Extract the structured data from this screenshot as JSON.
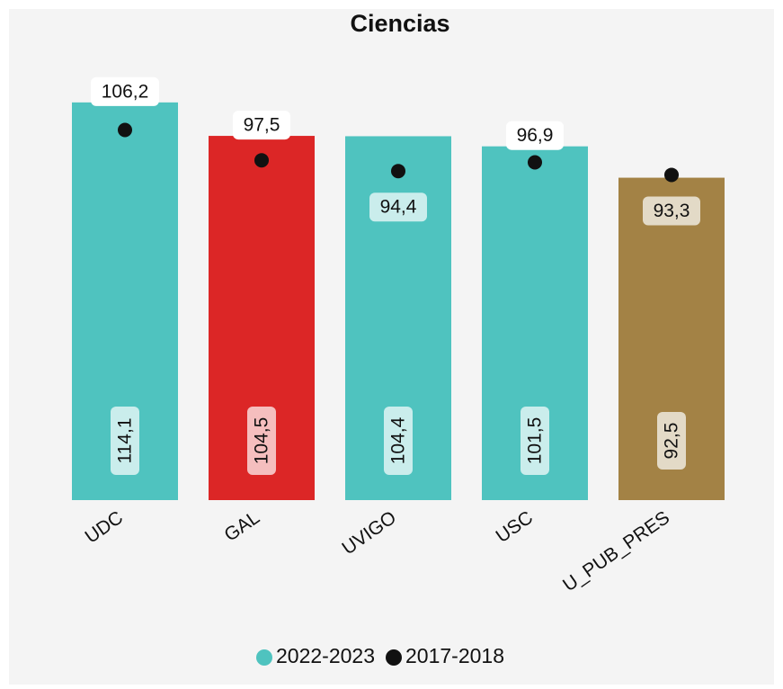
{
  "chart_data": {
    "type": "bar",
    "title": "Ciencias",
    "categories": [
      "UDC",
      "GAL",
      "UVIGO",
      "USC",
      "U_PUB_PRES"
    ],
    "series": [
      {
        "name": "2022-2023",
        "color": "#4fc3bf",
        "colors": [
          "#4fc3bf",
          "#dc2626",
          "#4fc3bf",
          "#4fc3bf",
          "#a38245"
        ],
        "values": [
          114.1,
          104.5,
          104.4,
          101.5,
          92.5
        ],
        "value_labels": [
          "114,1",
          "104,5",
          "104,4",
          "101,5",
          "92,5"
        ]
      },
      {
        "name": "2017-2018",
        "color": "#111111",
        "values": [
          106.2,
          97.5,
          94.4,
          96.9,
          93.3
        ],
        "value_labels": [
          "106,2",
          "97,5",
          "94,4",
          "96,9",
          "93,3"
        ]
      }
    ],
    "ylim": [
      0,
      120
    ]
  }
}
